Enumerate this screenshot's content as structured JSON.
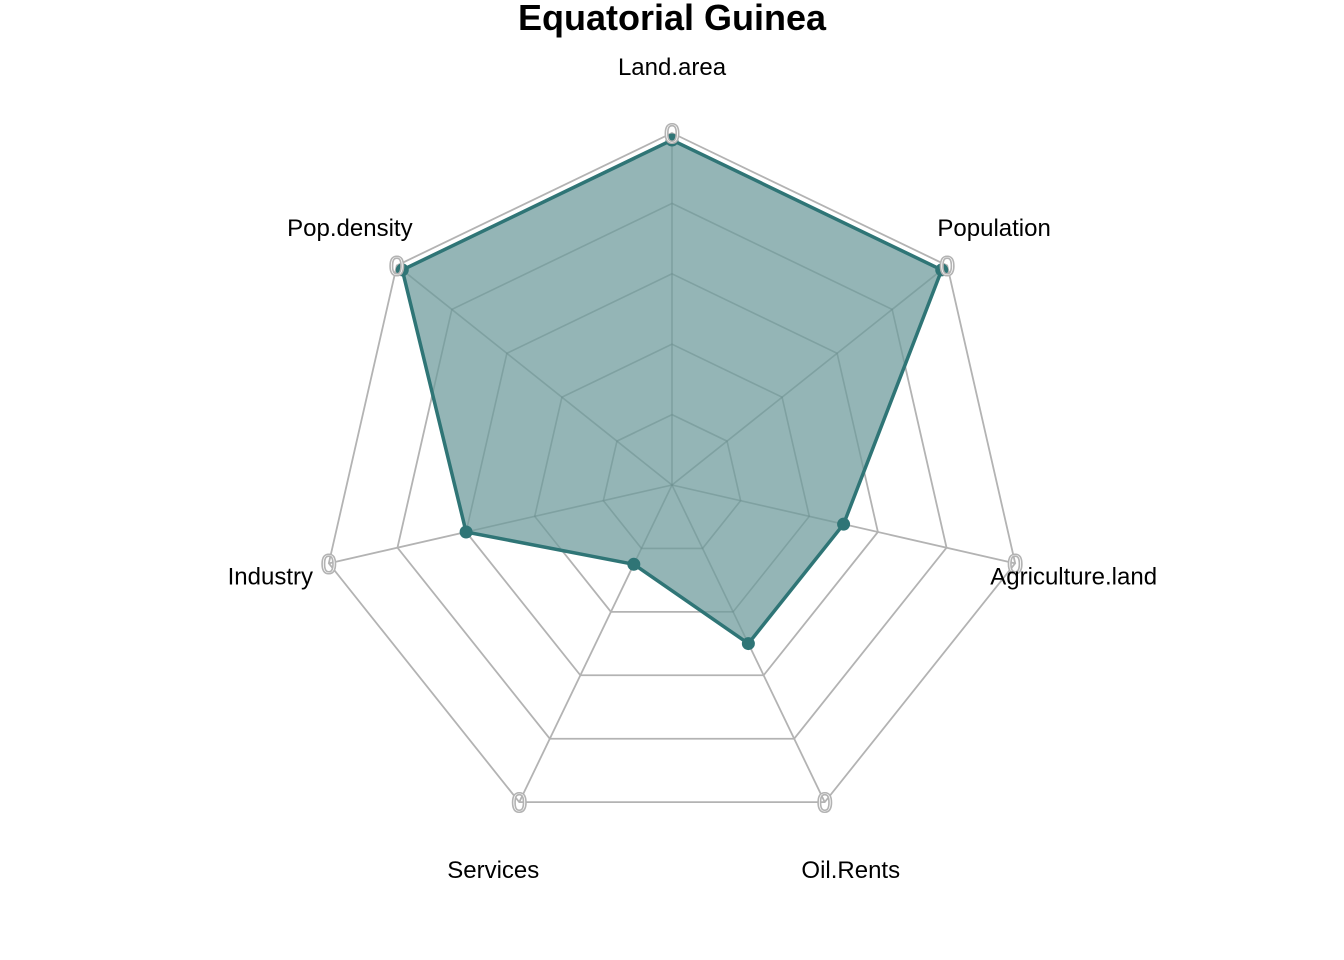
{
  "chart_data": {
    "type": "radar",
    "title": "Equatorial Guinea",
    "axes": [
      "Land.area",
      "Population",
      "Agriculture.land",
      "Oil.Rents",
      "Services",
      "Industry",
      "Pop.density"
    ],
    "rlim": [
      0,
      1
    ],
    "grid_levels": 5,
    "grid": true,
    "series": [
      {
        "values": [
          0.98,
          0.98,
          0.5,
          0.5,
          0.25,
          0.6,
          0.98
        ],
        "color": "#2f7576",
        "fill": "#94b5b6"
      }
    ],
    "axis_tick_labels": [
      "0",
      "0",
      "0",
      "0",
      "0",
      "0",
      "0"
    ]
  }
}
